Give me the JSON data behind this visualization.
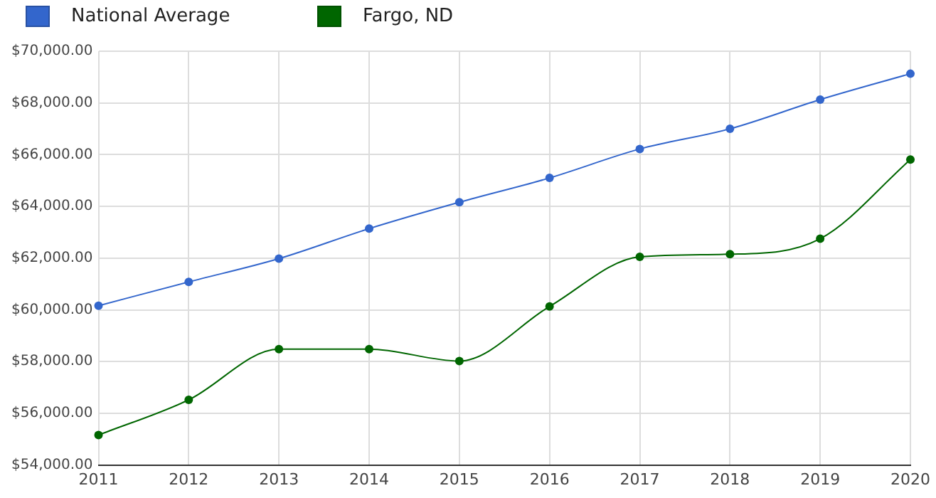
{
  "chart_data": {
    "type": "line",
    "categories": [
      "2011",
      "2012",
      "2013",
      "2014",
      "2015",
      "2016",
      "2017",
      "2018",
      "2019",
      "2020"
    ],
    "series": [
      {
        "name": "National Average",
        "color": "#3366cc",
        "values": [
          60160,
          61080,
          61980,
          63140,
          64160,
          65100,
          66220,
          67000,
          68130,
          69130
        ]
      },
      {
        "name": "Fargo, ND",
        "color": "#006600",
        "values": [
          55160,
          56520,
          58480,
          58480,
          58020,
          60130,
          62050,
          62150,
          62750,
          65810
        ]
      }
    ],
    "ylim": [
      54000,
      70000
    ],
    "yticks": [
      {
        "value": 54000,
        "label": "$54,000.00"
      },
      {
        "value": 56000,
        "label": "$56,000.00"
      },
      {
        "value": 58000,
        "label": "$58,000.00"
      },
      {
        "value": 60000,
        "label": "$60,000.00"
      },
      {
        "value": 62000,
        "label": "$62,000.00"
      },
      {
        "value": 64000,
        "label": "$64,000.00"
      },
      {
        "value": 66000,
        "label": "$66,000.00"
      },
      {
        "value": 68000,
        "label": "$68,000.00"
      },
      {
        "value": 70000,
        "label": "$70,000.00"
      }
    ],
    "grid": true,
    "legend": "top left",
    "marker": "circle",
    "line_style": "solid"
  }
}
